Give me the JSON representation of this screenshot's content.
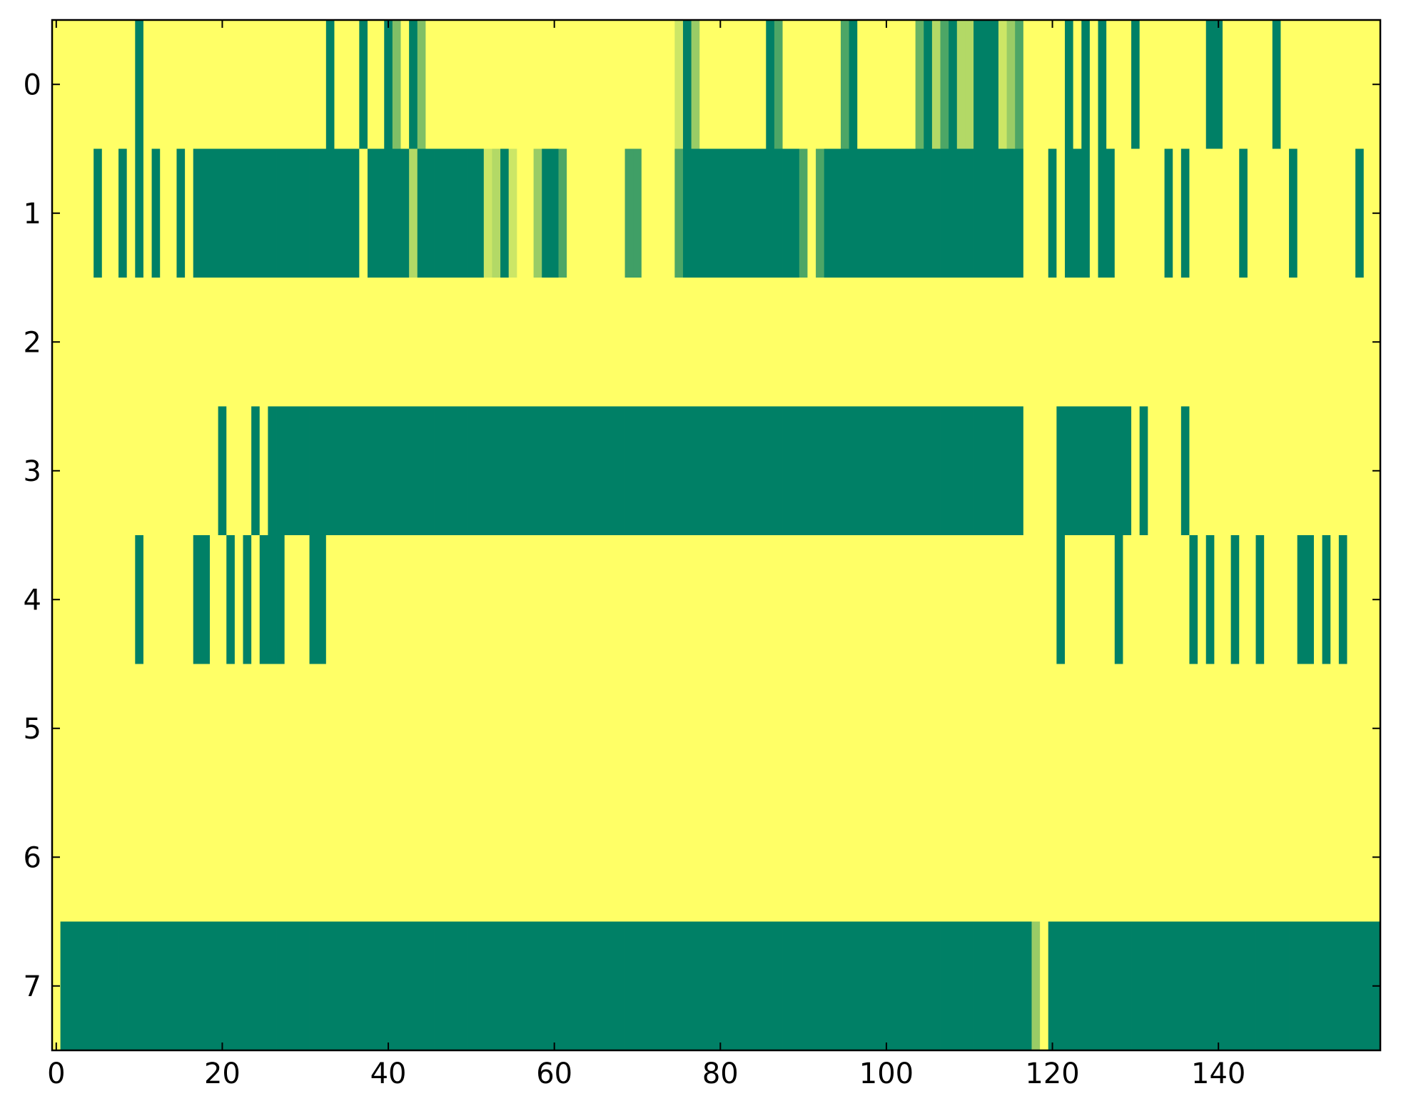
{
  "chart_data": {
    "type": "heatmap",
    "colormap": "summer",
    "xlim": [
      -0.5,
      159.5
    ],
    "xticks": [
      0,
      20,
      40,
      60,
      80,
      100,
      120,
      140
    ],
    "ylim": [
      7.5,
      -0.5
    ],
    "yticks": [
      0,
      1,
      2,
      3,
      4,
      5,
      6,
      7
    ],
    "values": [
      [
        1,
        1,
        1,
        1,
        1,
        1,
        1,
        1,
        1,
        1,
        0,
        1,
        1,
        1,
        1,
        1,
        1,
        1,
        1,
        1,
        1,
        1,
        1,
        1,
        1,
        1,
        1,
        1,
        1,
        1,
        1,
        1,
        1,
        0,
        1,
        1,
        1,
        0,
        1,
        1,
        0,
        0.5,
        1,
        0,
        0.5,
        1,
        1,
        1,
        1,
        1,
        1,
        1,
        1,
        1,
        1,
        1,
        1,
        1,
        1,
        1,
        1,
        1,
        1,
        1,
        1,
        1,
        1,
        1,
        1,
        1,
        1,
        1,
        1,
        1,
        1,
        0.8,
        0,
        0.6,
        1,
        1,
        1,
        1,
        1,
        1,
        1,
        1,
        0,
        0.3,
        1,
        1,
        1,
        1,
        1,
        1,
        1,
        0.3,
        0,
        1,
        1,
        1,
        1,
        1,
        1,
        1,
        0.4,
        0,
        0.7,
        0.3,
        0,
        0.7,
        0.7,
        0,
        0,
        0,
        0.8,
        0.6,
        0.3,
        1,
        1,
        1,
        1,
        1,
        0,
        1,
        0,
        1,
        0,
        1,
        1,
        1,
        0,
        1,
        1,
        1,
        1,
        1,
        1,
        1,
        1,
        0,
        0,
        1,
        1,
        1,
        1,
        1,
        1,
        0,
        1,
        1,
        1,
        1,
        1,
        1,
        1,
        1,
        1,
        1,
        1,
        1
      ],
      [
        1,
        1,
        1,
        1,
        1,
        0,
        1,
        1,
        0,
        1,
        0,
        1,
        0,
        1,
        1,
        0,
        1,
        0,
        0,
        0,
        0,
        0,
        0,
        0,
        0,
        0,
        0,
        0,
        0,
        0,
        0,
        0,
        0,
        0,
        0,
        0,
        0,
        1,
        0,
        0,
        0,
        0,
        0,
        0.7,
        0,
        0,
        0,
        0,
        0,
        0,
        0,
        0,
        0.8,
        0.7,
        0,
        0.8,
        1,
        1,
        0.6,
        0,
        0,
        0.3,
        1,
        1,
        1,
        1,
        1,
        1,
        1,
        0.25,
        0.25,
        1,
        1,
        1,
        1,
        0.3,
        0,
        0,
        0,
        0,
        0,
        0,
        0,
        0,
        0,
        0,
        0,
        0,
        0,
        0,
        0.3,
        1,
        0.3,
        0,
        0,
        0,
        0,
        0,
        0,
        0,
        0,
        0,
        0,
        0,
        0,
        0,
        0,
        0,
        0,
        0,
        0,
        0,
        0,
        0,
        0,
        0,
        0,
        1,
        1,
        1,
        0,
        1,
        0,
        0,
        0,
        1,
        0,
        0,
        1,
        1,
        1,
        1,
        1,
        1,
        0,
        1,
        0,
        1,
        1,
        1,
        1,
        1,
        1,
        0,
        1,
        1,
        1,
        1,
        1,
        0,
        1,
        1,
        1,
        1,
        1,
        1,
        1,
        0,
        1,
        1
      ],
      [
        1,
        1,
        1,
        1,
        1,
        1,
        1,
        1,
        1,
        1,
        1,
        1,
        1,
        1,
        1,
        1,
        1,
        1,
        1,
        1,
        1,
        1,
        1,
        1,
        1,
        1,
        1,
        1,
        1,
        1,
        1,
        1,
        1,
        1,
        1,
        1,
        1,
        1,
        1,
        1,
        1,
        1,
        1,
        1,
        1,
        1,
        1,
        1,
        1,
        1,
        1,
        1,
        1,
        1,
        1,
        1,
        1,
        1,
        1,
        1,
        1,
        1,
        1,
        1,
        1,
        1,
        1,
        1,
        1,
        1,
        1,
        1,
        1,
        1,
        1,
        1,
        1,
        1,
        1,
        1,
        1,
        1,
        1,
        1,
        1,
        1,
        1,
        1,
        1,
        1,
        1,
        1,
        1,
        1,
        1,
        1,
        1,
        1,
        1,
        1,
        1,
        1,
        1,
        1,
        1,
        1,
        1,
        1,
        1,
        1,
        1,
        1,
        1,
        1,
        1,
        1,
        1,
        1,
        1,
        1,
        1,
        1,
        1,
        1,
        1,
        1,
        1,
        1,
        1,
        1,
        1,
        1,
        1,
        1,
        1,
        1,
        1,
        1,
        1,
        1,
        1,
        1,
        1,
        1,
        1,
        1,
        1,
        1,
        1,
        1,
        1,
        1,
        1,
        1,
        1,
        1,
        1,
        1,
        1,
        1
      ],
      [
        1,
        1,
        1,
        1,
        1,
        1,
        1,
        1,
        1,
        1,
        1,
        1,
        1,
        1,
        1,
        1,
        1,
        1,
        1,
        1,
        0,
        1,
        1,
        1,
        0,
        1,
        0,
        0,
        0,
        0,
        0,
        0,
        0,
        0,
        0,
        0,
        0,
        0,
        0,
        0,
        0,
        0,
        0,
        0,
        0,
        0,
        0,
        0,
        0,
        0,
        0,
        0,
        0,
        0,
        0,
        0,
        0,
        0,
        0,
        0,
        0,
        0,
        0,
        0,
        0,
        0,
        0,
        0,
        0,
        0,
        0,
        0,
        0,
        0,
        0,
        0,
        0,
        0,
        0,
        0,
        0,
        0,
        0,
        0,
        0,
        0,
        0,
        0,
        0,
        0,
        0,
        0,
        0,
        0,
        0,
        0,
        0,
        0,
        0,
        0,
        0,
        0,
        0,
        0,
        0,
        0,
        0,
        0,
        0,
        0,
        0,
        0,
        0,
        0,
        0,
        0,
        0,
        1,
        1,
        1,
        1,
        0,
        0,
        0,
        0,
        0,
        0,
        0,
        0,
        0,
        1,
        0,
        1,
        1,
        1,
        1,
        0,
        1,
        1,
        1,
        1,
        1,
        1,
        1,
        1,
        1,
        1,
        1,
        1,
        1,
        1,
        1,
        1,
        1,
        1,
        1,
        1,
        1,
        1,
        1
      ],
      [
        1,
        1,
        1,
        1,
        1,
        1,
        1,
        1,
        1,
        1,
        0,
        1,
        1,
        1,
        1,
        1,
        1,
        0,
        0,
        1,
        1,
        0,
        1,
        0,
        1,
        0,
        0,
        0,
        1,
        1,
        1,
        0,
        0,
        1,
        1,
        1,
        1,
        1,
        1,
        1,
        1,
        1,
        1,
        1,
        1,
        1,
        1,
        1,
        1,
        1,
        1,
        1,
        1,
        1,
        1,
        1,
        1,
        1,
        1,
        1,
        1,
        1,
        1,
        1,
        1,
        1,
        1,
        1,
        1,
        1,
        1,
        1,
        1,
        1,
        1,
        1,
        1,
        1,
        1,
        1,
        1,
        1,
        1,
        1,
        1,
        1,
        1,
        1,
        1,
        1,
        1,
        1,
        1,
        1,
        1,
        1,
        1,
        1,
        1,
        1,
        1,
        1,
        1,
        1,
        1,
        1,
        1,
        1,
        1,
        1,
        1,
        1,
        1,
        1,
        1,
        1,
        1,
        1,
        1,
        1,
        1,
        0,
        1,
        1,
        1,
        1,
        1,
        1,
        0,
        1,
        1,
        1,
        1,
        1,
        1,
        1,
        1,
        0,
        1,
        0,
        1,
        1,
        0,
        1,
        1,
        0,
        1,
        1,
        1,
        1,
        0,
        0,
        1,
        0,
        1,
        0,
        1,
        1,
        1,
        1
      ],
      [
        1,
        1,
        1,
        1,
        1,
        1,
        1,
        1,
        1,
        1,
        1,
        1,
        1,
        1,
        1,
        1,
        1,
        1,
        1,
        1,
        1,
        1,
        1,
        1,
        1,
        1,
        1,
        1,
        1,
        1,
        1,
        1,
        1,
        1,
        1,
        1,
        1,
        1,
        1,
        1,
        1,
        1,
        1,
        1,
        1,
        1,
        1,
        1,
        1,
        1,
        1,
        1,
        1,
        1,
        1,
        1,
        1,
        1,
        1,
        1,
        1,
        1,
        1,
        1,
        1,
        1,
        1,
        1,
        1,
        1,
        1,
        1,
        1,
        1,
        1,
        1,
        1,
        1,
        1,
        1,
        1,
        1,
        1,
        1,
        1,
        1,
        1,
        1,
        1,
        1,
        1,
        1,
        1,
        1,
        1,
        1,
        1,
        1,
        1,
        1,
        1,
        1,
        1,
        1,
        1,
        1,
        1,
        1,
        1,
        1,
        1,
        1,
        1,
        1,
        1,
        1,
        1,
        1,
        1,
        1,
        1,
        1,
        1,
        1,
        1,
        1,
        1,
        1,
        1,
        1,
        1,
        1,
        1,
        1,
        1,
        1,
        1,
        1,
        1,
        1,
        1,
        1,
        1,
        1,
        1,
        1,
        1,
        1,
        1,
        1,
        1,
        1,
        1,
        1,
        1,
        1,
        1,
        1,
        1,
        1
      ],
      [
        1,
        1,
        1,
        1,
        1,
        1,
        1,
        1,
        1,
        1,
        1,
        1,
        1,
        1,
        1,
        1,
        1,
        1,
        1,
        1,
        1,
        1,
        1,
        1,
        1,
        1,
        1,
        1,
        1,
        1,
        1,
        1,
        1,
        1,
        1,
        1,
        1,
        1,
        1,
        1,
        1,
        1,
        1,
        1,
        1,
        1,
        1,
        1,
        1,
        1,
        1,
        1,
        1,
        1,
        1,
        1,
        1,
        1,
        1,
        1,
        1,
        1,
        1,
        1,
        1,
        1,
        1,
        1,
        1,
        1,
        1,
        1,
        1,
        1,
        1,
        1,
        1,
        1,
        1,
        1,
        1,
        1,
        1,
        1,
        1,
        1,
        1,
        1,
        1,
        1,
        1,
        1,
        1,
        1,
        1,
        1,
        1,
        1,
        1,
        1,
        1,
        1,
        1,
        1,
        1,
        1,
        1,
        1,
        1,
        1,
        1,
        1,
        1,
        1,
        1,
        1,
        1,
        1,
        1,
        1,
        1,
        1,
        1,
        1,
        1,
        1,
        1,
        1,
        1,
        1,
        1,
        1,
        1,
        1,
        1,
        1,
        1,
        1,
        1,
        1,
        1,
        1,
        1,
        1,
        1,
        1,
        1,
        1,
        1,
        1,
        1,
        1,
        1,
        1,
        1,
        1,
        1,
        1,
        1,
        1
      ],
      [
        1,
        0,
        0,
        0,
        0,
        0,
        0,
        0,
        0,
        0,
        0,
        0,
        0,
        0,
        0,
        0,
        0,
        0,
        0,
        0,
        0,
        0,
        0,
        0,
        0,
        0,
        0,
        0,
        0,
        0,
        0,
        0,
        0,
        0,
        0,
        0,
        0,
        0,
        0,
        0,
        0,
        0,
        0,
        0,
        0,
        0,
        0,
        0,
        0,
        0,
        0,
        0,
        0,
        0,
        0,
        0,
        0,
        0,
        0,
        0,
        0,
        0,
        0,
        0,
        0,
        0,
        0,
        0,
        0,
        0,
        0,
        0,
        0,
        0,
        0,
        0,
        0,
        0,
        0,
        0,
        0,
        0,
        0,
        0,
        0,
        0,
        0,
        0,
        0,
        0,
        0,
        0,
        0,
        0,
        0,
        0,
        0,
        0,
        0,
        0,
        0,
        0,
        0,
        0,
        0,
        0,
        0,
        0,
        0,
        0,
        0,
        0,
        0,
        0,
        0,
        0,
        0,
        0,
        0.6,
        1,
        0,
        0,
        0,
        0,
        0,
        0,
        0,
        0,
        0,
        0,
        0,
        0,
        0,
        0,
        0,
        0,
        0,
        0,
        0,
        0,
        0,
        0,
        0,
        0,
        0,
        0,
        0,
        0,
        0,
        0,
        0,
        0,
        0,
        0,
        0,
        0,
        0,
        0,
        0,
        0
      ]
    ]
  }
}
